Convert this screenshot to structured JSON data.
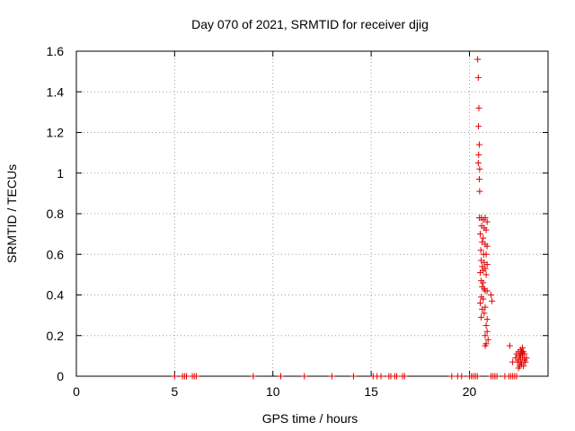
{
  "colors": {
    "marker": "#e00000",
    "grid": "#a0a0a0",
    "axis": "#000000"
  },
  "chart_data": {
    "type": "scatter",
    "title": "Day 070 of 2021, SRMTID for receiver djig",
    "xlabel": "GPS time / hours",
    "ylabel": "SRMTID / TECUs",
    "xlim": [
      0,
      24
    ],
    "ylim": [
      0,
      1.6
    ],
    "xticks": [
      0,
      5,
      10,
      15,
      20
    ],
    "xtick_labels": [
      "0",
      "5",
      "10",
      "15",
      "20"
    ],
    "yticks": [
      0,
      0.2,
      0.4,
      0.6,
      0.8,
      1,
      1.2,
      1.4,
      1.6
    ],
    "ytick_labels": [
      "0",
      "0.2",
      "0.4",
      "0.6",
      "0.8",
      "1",
      "1.2",
      "1.4",
      "1.6"
    ],
    "grid": true,
    "marker": "+",
    "series": [
      {
        "name": "SRMTID",
        "points": [
          [
            5.0,
            0
          ],
          [
            5.4,
            0
          ],
          [
            5.5,
            0
          ],
          [
            5.6,
            0
          ],
          [
            5.9,
            0
          ],
          [
            6.0,
            0
          ],
          [
            6.1,
            0
          ],
          [
            9.0,
            0
          ],
          [
            10.4,
            0
          ],
          [
            11.6,
            0
          ],
          [
            13.0,
            0
          ],
          [
            14.1,
            0
          ],
          [
            15.1,
            0
          ],
          [
            15.3,
            0
          ],
          [
            15.5,
            0
          ],
          [
            15.9,
            0
          ],
          [
            16.0,
            0
          ],
          [
            16.2,
            0
          ],
          [
            16.3,
            0
          ],
          [
            16.6,
            0
          ],
          [
            16.7,
            0
          ],
          [
            19.1,
            0
          ],
          [
            19.4,
            0
          ],
          [
            19.6,
            0
          ],
          [
            20.0,
            0
          ],
          [
            20.1,
            0
          ],
          [
            20.2,
            0
          ],
          [
            20.3,
            0
          ],
          [
            20.4,
            0
          ],
          [
            21.1,
            0
          ],
          [
            21.2,
            0
          ],
          [
            21.3,
            0
          ],
          [
            21.4,
            0
          ],
          [
            21.8,
            0
          ],
          [
            22.0,
            0
          ],
          [
            22.1,
            0
          ],
          [
            22.2,
            0
          ],
          [
            22.3,
            0
          ],
          [
            22.4,
            0
          ],
          [
            20.42,
            1.56
          ],
          [
            20.45,
            1.47
          ],
          [
            20.48,
            1.32
          ],
          [
            20.46,
            1.23
          ],
          [
            20.5,
            1.14
          ],
          [
            20.47,
            1.09
          ],
          [
            20.45,
            1.05
          ],
          [
            20.52,
            1.02
          ],
          [
            20.5,
            0.97
          ],
          [
            20.52,
            0.91
          ],
          [
            20.5,
            0.78
          ],
          [
            20.6,
            0.78
          ],
          [
            20.7,
            0.77
          ],
          [
            20.8,
            0.78
          ],
          [
            20.9,
            0.76
          ],
          [
            20.62,
            0.74
          ],
          [
            20.75,
            0.73
          ],
          [
            20.85,
            0.72
          ],
          [
            20.55,
            0.7
          ],
          [
            20.7,
            0.68
          ],
          [
            20.65,
            0.66
          ],
          [
            20.8,
            0.65
          ],
          [
            20.9,
            0.64
          ],
          [
            20.58,
            0.62
          ],
          [
            20.72,
            0.6
          ],
          [
            20.85,
            0.6
          ],
          [
            20.6,
            0.57
          ],
          [
            20.75,
            0.56
          ],
          [
            20.9,
            0.55
          ],
          [
            20.65,
            0.54
          ],
          [
            20.8,
            0.53
          ],
          [
            20.7,
            0.52
          ],
          [
            20.55,
            0.51
          ],
          [
            20.85,
            0.5
          ],
          [
            20.6,
            0.47
          ],
          [
            20.7,
            0.46
          ],
          [
            20.65,
            0.44
          ],
          [
            20.75,
            0.43
          ],
          [
            20.8,
            0.42
          ],
          [
            20.9,
            0.42
          ],
          [
            21.1,
            0.4
          ],
          [
            21.15,
            0.37
          ],
          [
            20.6,
            0.39
          ],
          [
            20.7,
            0.38
          ],
          [
            20.55,
            0.36
          ],
          [
            20.8,
            0.34
          ],
          [
            20.65,
            0.33
          ],
          [
            20.75,
            0.31
          ],
          [
            20.6,
            0.29
          ],
          [
            20.9,
            0.28
          ],
          [
            20.85,
            0.25
          ],
          [
            20.9,
            0.22
          ],
          [
            20.8,
            0.2
          ],
          [
            20.95,
            0.18
          ],
          [
            20.85,
            0.16
          ],
          [
            20.8,
            0.15
          ],
          [
            22.05,
            0.15
          ],
          [
            22.2,
            0.07
          ],
          [
            22.35,
            0.09
          ],
          [
            22.4,
            0.11
          ],
          [
            22.5,
            0.12
          ],
          [
            22.55,
            0.1
          ],
          [
            22.6,
            0.13
          ],
          [
            22.65,
            0.12
          ],
          [
            22.7,
            0.14
          ],
          [
            22.75,
            0.12
          ],
          [
            22.8,
            0.11
          ],
          [
            22.5,
            0.08
          ],
          [
            22.6,
            0.07
          ],
          [
            22.7,
            0.09
          ],
          [
            22.8,
            0.08
          ],
          [
            22.85,
            0.07
          ],
          [
            22.55,
            0.05
          ],
          [
            22.65,
            0.06
          ],
          [
            22.75,
            0.05
          ],
          [
            22.6,
            0.1
          ],
          [
            22.7,
            0.11
          ],
          [
            22.45,
            0.07
          ],
          [
            22.9,
            0.09
          ],
          [
            22.5,
            0.04
          ]
        ]
      }
    ]
  }
}
